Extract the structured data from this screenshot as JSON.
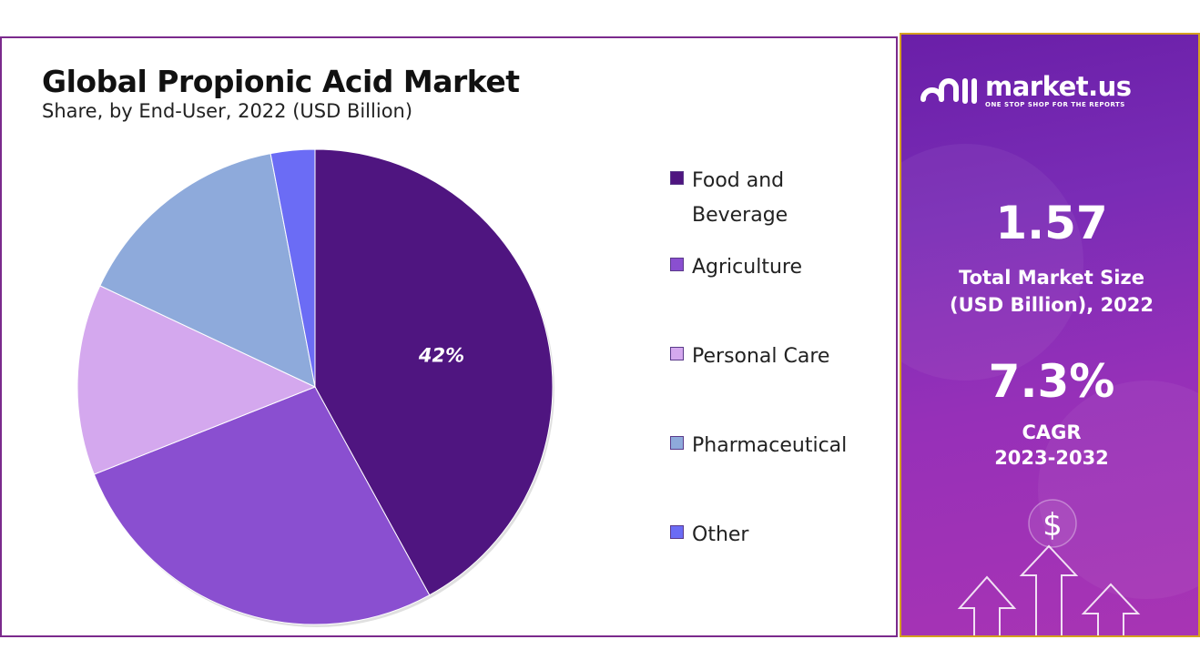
{
  "chart_data": {
    "type": "pie",
    "title": "Global Propionic Acid Market",
    "subtitle": "Share, by End-User, 2022 (USD Billion)",
    "categories": [
      "Food and Beverage",
      "Agriculture",
      "Personal Care",
      "Pharmaceutical",
      "Other"
    ],
    "values": [
      42,
      27,
      13,
      15,
      3
    ],
    "data_labels": [
      "42%",
      "",
      "",
      "",
      ""
    ],
    "colors": [
      "#4f1580",
      "#8a4fd0",
      "#d4a8ee",
      "#8eaadb",
      "#6b6cf5"
    ],
    "legend_position": "right"
  },
  "info_panel": {
    "logo_name": "market.us",
    "logo_tagline": "ONE STOP SHOP FOR THE REPORTS",
    "market_size_value": "1.57",
    "market_size_label_line1": "Total Market Size",
    "market_size_label_line2": "(USD Billion), 2022",
    "cagr_value": "7.3%",
    "cagr_label_line1": "CAGR",
    "cagr_label_line2": "2023-2032",
    "dollar_symbol": "$"
  }
}
